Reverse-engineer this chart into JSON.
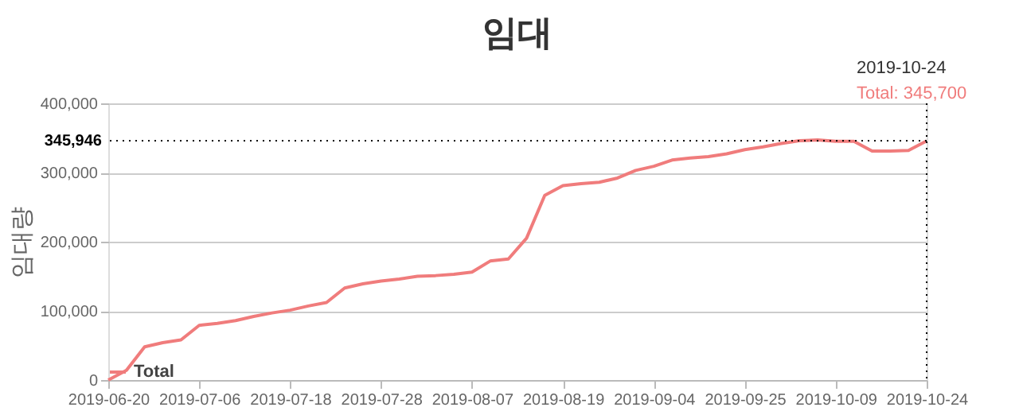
{
  "chart_data": {
    "type": "line",
    "title": "임대",
    "ylabel": "임대량",
    "categories": [
      "2019-06-20",
      null,
      null,
      null,
      null,
      "2019-07-06",
      null,
      null,
      null,
      null,
      "2019-07-18",
      null,
      null,
      null,
      null,
      "2019-07-28",
      null,
      null,
      null,
      null,
      "2019-08-07",
      null,
      null,
      null,
      null,
      "2019-08-19",
      null,
      null,
      null,
      null,
      "2019-09-04",
      null,
      null,
      null,
      null,
      "2019-09-25",
      null,
      null,
      null,
      null,
      "2019-10-09",
      null,
      null,
      null,
      null,
      "2019-10-24"
    ],
    "series": [
      {
        "name": "Total",
        "color": "#f07c7c",
        "values": [
          0,
          14000,
          48000,
          54000,
          58000,
          79000,
          82000,
          86000,
          92000,
          97000,
          101000,
          107000,
          112000,
          133000,
          139000,
          143000,
          146000,
          150000,
          151000,
          153000,
          156000,
          172000,
          175000,
          205000,
          267000,
          281000,
          284000,
          286000,
          292000,
          303000,
          309000,
          318000,
          321000,
          323000,
          327000,
          333000,
          337000,
          342000,
          346000,
          347000,
          345000,
          345000,
          331000,
          331000,
          332000,
          345700
        ]
      }
    ],
    "ylim": [
      0,
      400000
    ],
    "yticks": [
      0,
      {
        "value": 100000,
        "label": "100,000"
      },
      {
        "value": 200000,
        "label": "200,000"
      },
      {
        "value": 300000,
        "label": "300,000"
      },
      {
        "value": 400000,
        "label": "400,000"
      }
    ],
    "grid": "y",
    "legend": "bottom left",
    "marker": "none",
    "line_style": "solid",
    "ref_lines": [
      {
        "axis": "y",
        "value": 345946,
        "label": "345,946",
        "line_style": "dotted",
        "color": "#000000"
      },
      {
        "axis": "x",
        "value": "2019-10-24",
        "label": null,
        "line_style": "dotted",
        "color": "#000000"
      }
    ],
    "annotations": [
      "2019-10-24",
      "Total: 345,700"
    ]
  }
}
